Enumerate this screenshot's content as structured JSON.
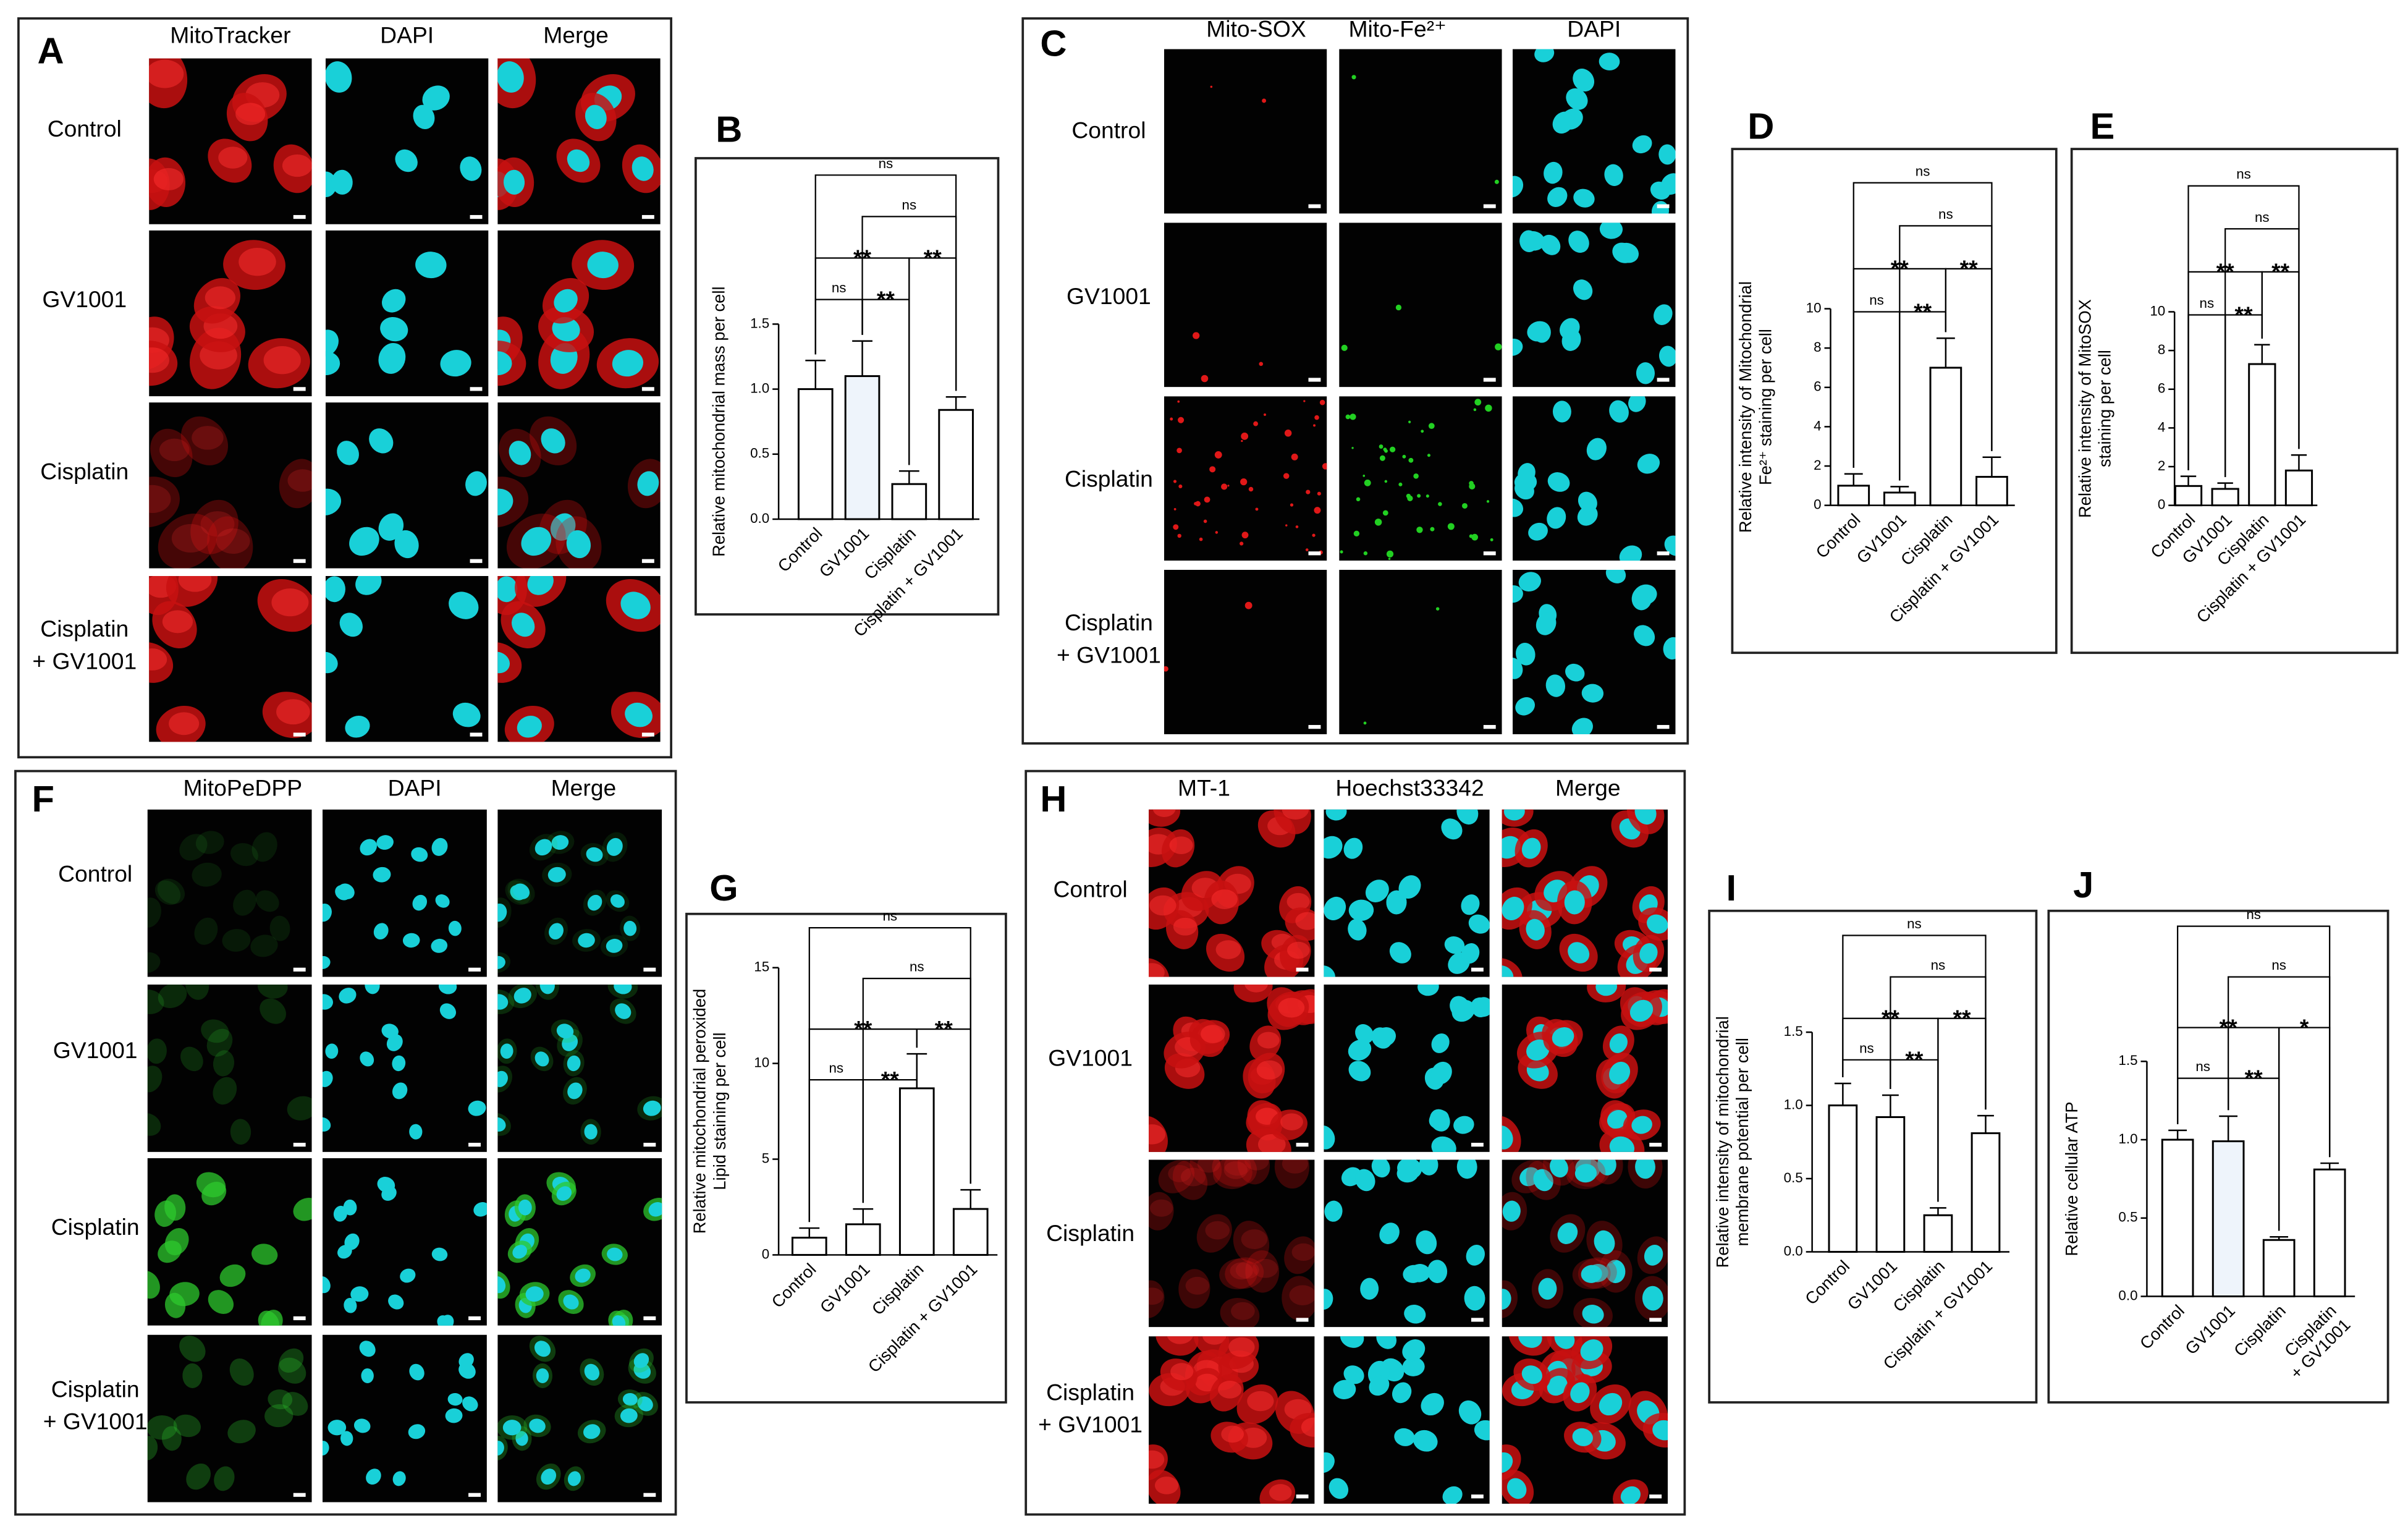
{
  "panels": [
    {
      "label": "A",
      "channels": [
        "MitoTracker",
        "DAPI",
        "Merge"
      ],
      "rows": [
        "Control",
        "GV1001",
        "Cisplatin",
        [
          "Cisplatin",
          "+ GV1001"
        ]
      ]
    },
    {
      "label": "C",
      "channels": [
        "Mito-SOX",
        "Mito-Fe²⁺",
        "DAPI"
      ],
      "rows": [
        "Control",
        "GV1001",
        "Cisplatin",
        [
          "Cisplatin",
          "+ GV1001"
        ]
      ]
    },
    {
      "label": "F",
      "channels": [
        "MitoPeDPP",
        "DAPI",
        "Merge"
      ],
      "rows": [
        "Control",
        "GV1001",
        "Cisplatin",
        [
          "Cisplatin",
          "+ GV1001"
        ]
      ]
    },
    {
      "label": "H",
      "channels": [
        "MT-1",
        "Hoechst33342",
        "Merge"
      ],
      "rows": [
        "Control",
        "GV1001",
        "Cisplatin",
        [
          "Cisplatin",
          "+ GV1001"
        ]
      ]
    }
  ],
  "chart_data": [
    {
      "type": "bar",
      "label": "B",
      "ylabel": [
        "Relative mitochondrial mass per cell"
      ],
      "categories": [
        "Control",
        "GV1001",
        "Cisplatin",
        "Cisplatin + GV1001"
      ],
      "values": [
        1.0,
        1.1,
        0.27,
        0.84
      ],
      "errors": [
        0.22,
        0.27,
        0.1,
        0.1
      ],
      "colors": [
        "#ffffff",
        "#eef4fb",
        "#ffffff",
        "#ffffff"
      ],
      "ylim": [
        0,
        1.5
      ],
      "yticks": [
        {
          "value": 0,
          "label": "0.0"
        },
        {
          "value": 0.5,
          "label": "0.5"
        },
        {
          "value": 1,
          "label": "1.0"
        },
        {
          "value": 1.5,
          "label": "1.5"
        }
      ],
      "comparisons": [
        {
          "pair": [
            0,
            1
          ],
          "label": "ns"
        },
        {
          "pair": [
            1,
            2
          ],
          "label": "**"
        },
        {
          "pair": [
            0,
            2
          ],
          "label": "**"
        },
        {
          "pair": [
            2,
            3
          ],
          "label": "**"
        },
        {
          "pair": [
            1,
            3
          ],
          "label": "ns"
        },
        {
          "pair": [
            0,
            3
          ],
          "label": "ns"
        }
      ]
    },
    {
      "type": "bar",
      "label": "D",
      "ylabel": [
        "Relative intensity of Mitochondrial",
        "Fe²⁺ staining per cell"
      ],
      "categories": [
        "Control",
        "GV1001",
        "Cisplatin",
        "Cisplatin + GV1001"
      ],
      "values": [
        1.0,
        0.65,
        7.0,
        1.45
      ],
      "errors": [
        0.6,
        0.3,
        1.5,
        1.0
      ],
      "colors": [
        "#ffffff",
        "#ffffff",
        "#ffffff",
        "#ffffff"
      ],
      "ylim": [
        0,
        10
      ],
      "yticks": [
        0,
        2,
        4,
        6,
        8,
        10
      ],
      "comparisons": [
        {
          "pair": [
            0,
            1
          ],
          "label": "ns"
        },
        {
          "pair": [
            1,
            2
          ],
          "label": "**"
        },
        {
          "pair": [
            0,
            2
          ],
          "label": "**"
        },
        {
          "pair": [
            2,
            3
          ],
          "label": "**"
        },
        {
          "pair": [
            1,
            3
          ],
          "label": "ns"
        },
        {
          "pair": [
            0,
            3
          ],
          "label": "ns"
        }
      ]
    },
    {
      "type": "bar",
      "label": "E",
      "ylabel": [
        "Relative intensity of MitoSOX",
        "staining per cell"
      ],
      "categories": [
        "Control",
        "GV1001",
        "Cisplatin",
        "Cisplatin + GV1001"
      ],
      "values": [
        1.0,
        0.85,
        7.3,
        1.8
      ],
      "errors": [
        0.5,
        0.3,
        1.0,
        0.8
      ],
      "colors": [
        "#ffffff",
        "#ffffff",
        "#ffffff",
        "#ffffff"
      ],
      "ylim": [
        0,
        10
      ],
      "yticks": [
        0,
        2,
        4,
        6,
        8,
        10
      ],
      "comparisons": [
        {
          "pair": [
            0,
            1
          ],
          "label": "ns"
        },
        {
          "pair": [
            1,
            2
          ],
          "label": "**"
        },
        {
          "pair": [
            0,
            2
          ],
          "label": "**"
        },
        {
          "pair": [
            2,
            3
          ],
          "label": "**"
        },
        {
          "pair": [
            1,
            3
          ],
          "label": "ns"
        },
        {
          "pair": [
            0,
            3
          ],
          "label": "ns"
        }
      ]
    },
    {
      "type": "bar",
      "label": "G",
      "ylabel": [
        "Relative mitochondrial peroxided",
        "Lipid staining per cell"
      ],
      "categories": [
        "Control",
        "GV1001",
        "Cisplatin",
        "Cisplatin + GV1001"
      ],
      "values": [
        0.9,
        1.6,
        8.7,
        2.4
      ],
      "errors": [
        0.5,
        0.8,
        1.8,
        1.0
      ],
      "colors": [
        "#ffffff",
        "#ffffff",
        "#ffffff",
        "#ffffff"
      ],
      "ylim": [
        0,
        15
      ],
      "yticks": [
        0,
        5,
        10,
        15
      ],
      "comparisons": [
        {
          "pair": [
            0,
            1
          ],
          "label": "ns"
        },
        {
          "pair": [
            1,
            2
          ],
          "label": "**"
        },
        {
          "pair": [
            0,
            2
          ],
          "label": "**"
        },
        {
          "pair": [
            2,
            3
          ],
          "label": "**"
        },
        {
          "pair": [
            1,
            3
          ],
          "label": "ns"
        },
        {
          "pair": [
            0,
            3
          ],
          "label": "ns"
        }
      ]
    },
    {
      "type": "bar",
      "label": "I",
      "ylabel": [
        "Relative intensity of mitochondrial",
        "membrane potential per cell"
      ],
      "categories": [
        "Control",
        "GV1001",
        "Cisplatin",
        "Cisplatin + GV1001"
      ],
      "values": [
        1.0,
        0.92,
        0.25,
        0.81
      ],
      "errors": [
        0.15,
        0.15,
        0.05,
        0.12
      ],
      "colors": [
        "#ffffff",
        "#ffffff",
        "#ffffff",
        "#ffffff"
      ],
      "ylim": [
        0,
        1.5
      ],
      "yticks": [
        {
          "value": 0,
          "label": "0.0"
        },
        {
          "value": 0.5,
          "label": "0.5"
        },
        {
          "value": 1,
          "label": "1.0"
        },
        {
          "value": 1.5,
          "label": "1.5"
        }
      ],
      "comparisons": [
        {
          "pair": [
            0,
            1
          ],
          "label": "ns"
        },
        {
          "pair": [
            1,
            2
          ],
          "label": "**"
        },
        {
          "pair": [
            0,
            2
          ],
          "label": "**"
        },
        {
          "pair": [
            2,
            3
          ],
          "label": "**"
        },
        {
          "pair": [
            1,
            3
          ],
          "label": "ns"
        },
        {
          "pair": [
            0,
            3
          ],
          "label": "ns"
        }
      ]
    },
    {
      "type": "bar",
      "label": "J",
      "ylabel": [
        "Relative cellular ATP"
      ],
      "categories": [
        "Control",
        "GV1001",
        "Cisplatin",
        [
          "Cisplatin",
          "+ GV1001"
        ]
      ],
      "values": [
        1.0,
        0.99,
        0.36,
        0.81
      ],
      "errors": [
        0.06,
        0.16,
        0.02,
        0.04
      ],
      "colors": [
        "#ffffff",
        "#eef4fb",
        "#ffffff",
        "#ffffff"
      ],
      "ylim": [
        0,
        1.5
      ],
      "yticks": [
        {
          "value": 0,
          "label": "0.0"
        },
        {
          "value": 0.5,
          "label": "0.5"
        },
        {
          "value": 1,
          "label": "1.0"
        },
        {
          "value": 1.5,
          "label": "1.5"
        }
      ],
      "comparisons": [
        {
          "pair": [
            0,
            1
          ],
          "label": "ns"
        },
        {
          "pair": [
            1,
            2
          ],
          "label": "**"
        },
        {
          "pair": [
            0,
            2
          ],
          "label": "**"
        },
        {
          "pair": [
            2,
            3
          ],
          "label": "*"
        },
        {
          "pair": [
            1,
            3
          ],
          "label": "ns"
        },
        {
          "pair": [
            0,
            3
          ],
          "label": "ns"
        }
      ]
    }
  ]
}
